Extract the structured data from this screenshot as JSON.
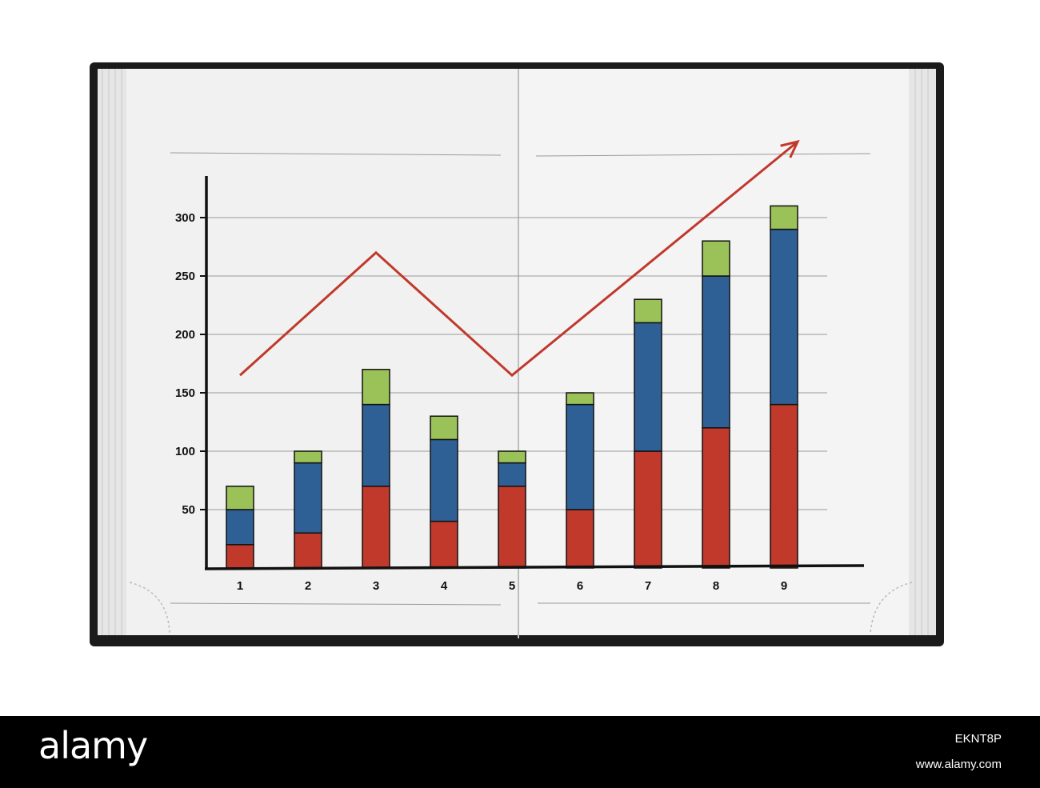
{
  "chart_data": {
    "type": "bar",
    "stacked": true,
    "categories": [
      "1",
      "2",
      "3",
      "4",
      "5",
      "6",
      "7",
      "8",
      "9"
    ],
    "series": [
      {
        "color": "#c0392b",
        "values": [
          20,
          30,
          70,
          40,
          70,
          50,
          100,
          120,
          140
        ]
      },
      {
        "color": "#2e6096",
        "values": [
          30,
          60,
          70,
          70,
          20,
          90,
          110,
          130,
          150
        ]
      },
      {
        "color": "#9bc159",
        "values": [
          20,
          10,
          30,
          20,
          10,
          10,
          20,
          30,
          20
        ]
      }
    ],
    "y_ticks": [
      "50",
      "100",
      "150",
      "200",
      "250",
      "300"
    ],
    "ylim": [
      0,
      330
    ],
    "grid": true,
    "trend_line": {
      "color": "#c0392b",
      "points": [
        [
          1,
          165
        ],
        [
          3,
          270
        ],
        [
          5,
          165
        ],
        [
          9.2,
          365
        ]
      ],
      "arrow": true
    }
  },
  "footer": {
    "brand": "alamy",
    "image_code": "EKNT8P",
    "site": "www.alamy.com"
  }
}
